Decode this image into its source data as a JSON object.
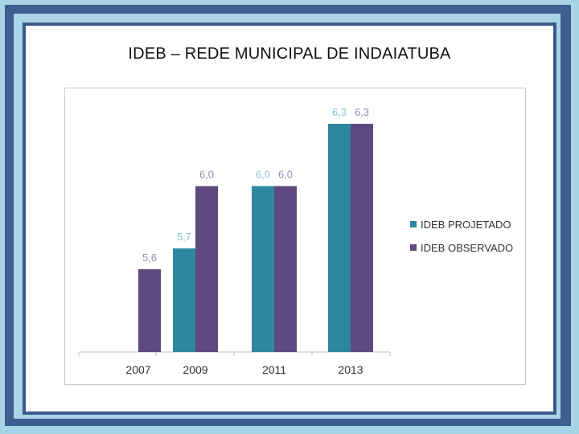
{
  "slide": {
    "title": "IDEB – REDE MUNICIPAL DE INDAIATUBA"
  },
  "colors": {
    "projetado": "#2e879f",
    "observado": "#5e4a7e"
  },
  "chart_data": {
    "type": "bar",
    "title": "IDEB – REDE MUNICIPAL DE INDAIATUBA",
    "categories": [
      "2007",
      "2009",
      "2011",
      "2013"
    ],
    "series": [
      {
        "name": "IDEB PROJETADO",
        "values": [
          null,
          5.7,
          6.0,
          6.3
        ],
        "labels": [
          null,
          "5,7",
          "6,0",
          "6,3"
        ]
      },
      {
        "name": "IDEB OBSERVADO",
        "values": [
          5.6,
          6.0,
          6.0,
          6.3
        ],
        "labels": [
          "5,6",
          "6,0",
          "6,0",
          "6,3"
        ]
      }
    ],
    "legend_position": "right",
    "grid": false
  }
}
